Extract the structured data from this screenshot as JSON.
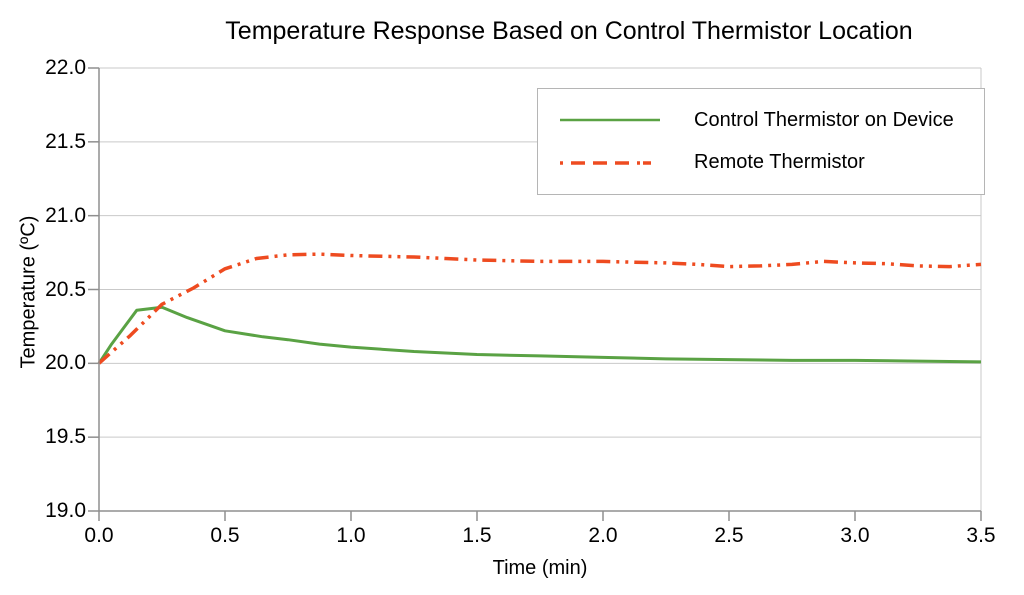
{
  "chart_data": {
    "type": "line",
    "title": "Temperature Response Based on Control Thermistor Location",
    "xlabel": "Time (min)",
    "ylabel": "Temperature (ºC)",
    "xlim": [
      0.0,
      3.5
    ],
    "ylim": [
      19.0,
      22.0
    ],
    "xticks": [
      "0.0",
      "0.5",
      "1.0",
      "1.5",
      "2.0",
      "2.5",
      "3.0",
      "3.5"
    ],
    "yticks": [
      "19.0",
      "19.5",
      "20.0",
      "20.5",
      "21.0",
      "21.5",
      "22.0"
    ],
    "grid": "horizontal-only",
    "legend_position": "top-right-inside",
    "colors": {
      "series1": "#5aa244",
      "series2": "#ee4b20",
      "gridline": "#c9c9c9",
      "axis": "#8f8f8f",
      "legend_border": "#b5b5b5",
      "text": "#000000",
      "background": "#ffffff"
    },
    "series": [
      {
        "name": "Control Thermistor on Device",
        "color": "#5aa244",
        "style": "solid",
        "points": [
          [
            0.0,
            20.0
          ],
          [
            0.05,
            20.13
          ],
          [
            0.15,
            20.36
          ],
          [
            0.25,
            20.38
          ],
          [
            0.35,
            20.31
          ],
          [
            0.5,
            20.22
          ],
          [
            0.65,
            20.18
          ],
          [
            0.75,
            20.16
          ],
          [
            0.875,
            20.13
          ],
          [
            1.0,
            20.11
          ],
          [
            1.25,
            20.08
          ],
          [
            1.5,
            20.06
          ],
          [
            1.75,
            20.05
          ],
          [
            2.0,
            20.04
          ],
          [
            2.25,
            20.03
          ],
          [
            2.5,
            20.025
          ],
          [
            2.75,
            20.02
          ],
          [
            3.0,
            20.02
          ],
          [
            3.25,
            20.015
          ],
          [
            3.5,
            20.01
          ]
        ]
      },
      {
        "name": "Remote Thermistor",
        "color": "#ee4b20",
        "style": "dash-dot-dot",
        "points": [
          [
            0.0,
            20.0
          ],
          [
            0.125,
            20.19
          ],
          [
            0.25,
            20.4
          ],
          [
            0.375,
            20.51
          ],
          [
            0.5,
            20.64
          ],
          [
            0.625,
            20.71
          ],
          [
            0.75,
            20.735
          ],
          [
            0.875,
            20.74
          ],
          [
            1.0,
            20.73
          ],
          [
            1.125,
            20.725
          ],
          [
            1.25,
            20.72
          ],
          [
            1.375,
            20.71
          ],
          [
            1.5,
            20.7
          ],
          [
            1.75,
            20.69
          ],
          [
            2.0,
            20.69
          ],
          [
            2.125,
            20.685
          ],
          [
            2.25,
            20.68
          ],
          [
            2.375,
            20.67
          ],
          [
            2.5,
            20.655
          ],
          [
            2.625,
            20.66
          ],
          [
            2.75,
            20.67
          ],
          [
            2.875,
            20.69
          ],
          [
            3.0,
            20.68
          ],
          [
            3.125,
            20.675
          ],
          [
            3.25,
            20.66
          ],
          [
            3.375,
            20.655
          ],
          [
            3.5,
            20.67
          ]
        ]
      }
    ]
  }
}
